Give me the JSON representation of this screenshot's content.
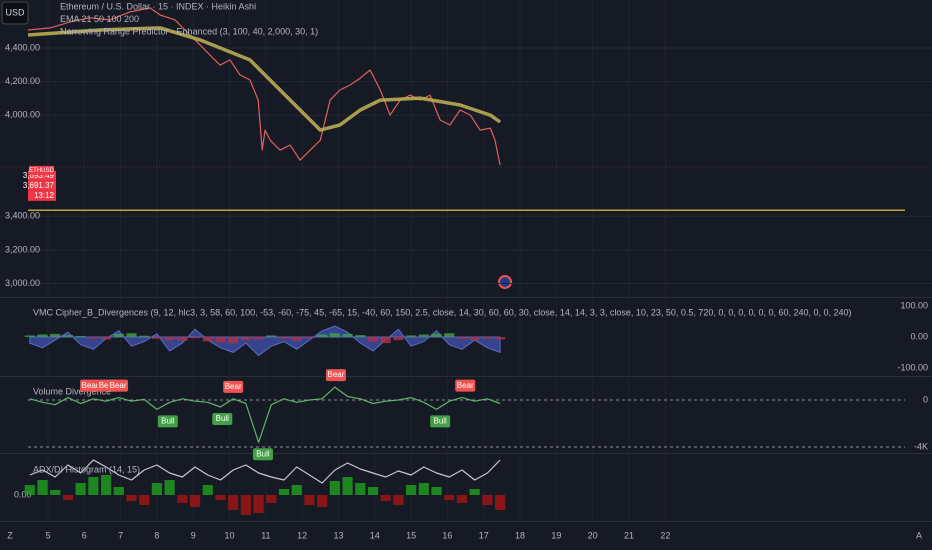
{
  "chart_data": [
    {
      "type": "line",
      "axis_side": "left",
      "grid": "solid",
      "xlim": [
        4.45,
        28.6
      ],
      "xticks": [
        5,
        6,
        7,
        8,
        9,
        10,
        11,
        12,
        13,
        14,
        15,
        16,
        17,
        18,
        19,
        20,
        21,
        22
      ],
      "ylim": [
        2920,
        4685
      ],
      "yticks": [
        {
          "value": 3000,
          "label": "3,000.00"
        },
        {
          "value": 3200,
          "label": "3,200.00"
        },
        {
          "value": 3400,
          "label": "3,400.00"
        },
        {
          "value": 4000,
          "label": "4,000.00"
        },
        {
          "value": 4200,
          "label": "4,200.00"
        },
        {
          "value": 4400,
          "label": "4,400.00"
        }
      ],
      "series": [
        {
          "name": "Ethereum / U.S. Dollar · 15 · INDEX · Heikin Ashi",
          "color": "#e0605e",
          "style": "line",
          "x": [
            4.45,
            5.06,
            5.61,
            6.16,
            6.71,
            7.26,
            7.81,
            8.09,
            8.5,
            8.91,
            9.19,
            9.46,
            9.74,
            10.01,
            10.29,
            10.56,
            10.79,
            10.9,
            10.98,
            11.12,
            11.39,
            11.67,
            11.94,
            12.22,
            12.5,
            12.77,
            13.04,
            13.32,
            13.6,
            13.87,
            14.15,
            14.42,
            14.7,
            14.97,
            15.25,
            15.52,
            15.8,
            16.07,
            16.35,
            16.63,
            16.9,
            17.18,
            17.31,
            17.45
          ],
          "values": [
            4507,
            4519,
            4555,
            4579,
            4567,
            4614,
            4638,
            4596,
            4567,
            4477,
            4418,
            4358,
            4298,
            4329,
            4239,
            4210,
            4090,
            3793,
            3912,
            3852,
            3793,
            3823,
            3733,
            3793,
            3852,
            4090,
            4150,
            4180,
            4221,
            4269,
            4150,
            4001,
            4090,
            4120,
            4090,
            4120,
            3971,
            3942,
            4031,
            4001,
            3912,
            3924,
            3852,
            3704
          ]
        },
        {
          "name": "EMA 21 50 100 200",
          "color": "#b9ac52",
          "style": "thick",
          "x": [
            4.45,
            6.43,
            8.09,
            9.19,
            10.56,
            11.67,
            12.5,
            13.04,
            13.6,
            14.15,
            15.25,
            16.35,
            17.18,
            17.45
          ],
          "values": [
            4477,
            4507,
            4519,
            4448,
            4329,
            4090,
            3912,
            3942,
            4031,
            4090,
            4102,
            4061,
            4001,
            3960
          ]
        },
        {
          "name": "Narrowing Range Predictor - Enhanced (3, 100, 40, 2,000, 30, 1)",
          "color": "#f0d24a",
          "style": "line",
          "x": [
            4.45,
            28.6
          ],
          "values": [
            3436,
            3436
          ]
        }
      ],
      "price_tags": [
        {
          "value": 3693.49,
          "label": "3,693.49"
        },
        {
          "value": 3691.37,
          "label": "3,691.37"
        }
      ],
      "symbol": "ETHUSD",
      "countdown": "13:12"
    },
    {
      "type": "line",
      "axis_side": "right",
      "grid": "none",
      "title": "VMC Cipher_B_Divergences (9, 12, hlc3, 3, 58, 60, 100, -53, -60, -75, 45, -65, 15, -40, 60, 150, 2.5, close, 14, 30, 60, 60, 30, close, 14, 14, 3, 3, close, 10, 23, 50, 0.5, 720, 0, 0, 0, 0, 0, 0, 60, 240, 0, 0, 240)",
      "ylim": [
        -123,
        126
      ],
      "yticks": [
        {
          "value": 100,
          "label": "100.00"
        },
        {
          "value": 0,
          "label": "0.00"
        },
        {
          "value": -100,
          "label": "-100.00"
        }
      ],
      "x": [
        4.5,
        4.85,
        5.2,
        5.55,
        5.9,
        6.25,
        6.6,
        6.95,
        7.3,
        7.65,
        8.0,
        8.35,
        8.7,
        9.05,
        9.4,
        9.75,
        10.1,
        10.45,
        10.8,
        11.15,
        11.5,
        11.85,
        12.2,
        12.55,
        12.9,
        13.25,
        13.6,
        13.95,
        14.3,
        14.65,
        15.0,
        15.35,
        15.7,
        16.05,
        16.4,
        16.75,
        17.1,
        17.45
      ],
      "series": [
        {
          "color": "#3f4fa8",
          "style": "area",
          "values": [
            -20,
            -35,
            -10,
            15,
            -25,
            -40,
            -5,
            20,
            -30,
            -15,
            10,
            -45,
            -20,
            25,
            -10,
            -35,
            -50,
            -20,
            -60,
            -30,
            -15,
            -40,
            -10,
            20,
            35,
            15,
            -20,
            -45,
            -10,
            25,
            -30,
            -15,
            20,
            -25,
            -40,
            -10,
            -35,
            -50
          ]
        },
        {
          "color": "#3f9e4a",
          "negative_color": "#a8324a",
          "style": "bars",
          "values": [
            5,
            8,
            10,
            6,
            3,
            -5,
            -8,
            10,
            12,
            4,
            -6,
            -10,
            -12,
            -4,
            -14,
            -18,
            -20,
            -10,
            -8,
            5,
            -6,
            -12,
            -4,
            8,
            12,
            10,
            6,
            -15,
            -20,
            -10,
            5,
            8,
            10,
            12,
            -6,
            -10,
            -5,
            -8
          ]
        }
      ]
    },
    {
      "type": "line",
      "axis_side": "right",
      "grid": "dashed",
      "title": "Volume Divergence",
      "ylim": [
        -4426,
        1957
      ],
      "yticks": [
        0,
        {
          "value": -4000,
          "label": "-4K"
        }
      ],
      "x": [
        4.5,
        4.85,
        5.2,
        5.55,
        5.9,
        6.25,
        6.6,
        6.95,
        7.3,
        7.65,
        8.0,
        8.35,
        8.7,
        9.05,
        9.4,
        9.75,
        10.1,
        10.45,
        10.8,
        11.15,
        11.5,
        11.85,
        12.2,
        12.55,
        12.9,
        13.25,
        13.6,
        13.95,
        14.3,
        14.65,
        15.0,
        15.35,
        15.7,
        16.05,
        16.4,
        16.75,
        17.1,
        17.45
      ],
      "series": [
        {
          "color": "#5fb56a",
          "style": "line",
          "values": [
            100,
            -200,
            -400,
            200,
            -300,
            100,
            -100,
            200,
            -100,
            50,
            -800,
            -200,
            100,
            -100,
            -200,
            -600,
            100,
            -300,
            -3600,
            -400,
            100,
            -200,
            0,
            100,
            1100,
            300,
            100,
            -300,
            -100,
            0,
            200,
            -200,
            -800,
            -100,
            200,
            -100,
            100,
            -300
          ]
        }
      ],
      "annotations": [
        {
          "text": "Bear",
          "x": 6.16,
          "y": 200,
          "color": "#f05350"
        },
        {
          "text": "Bear",
          "x": 6.63,
          "y": 200,
          "color": "#f05350"
        },
        {
          "text": "Bear",
          "x": 6.93,
          "y": 200,
          "color": "#f05350"
        },
        {
          "text": "Bull",
          "x": 8.3,
          "y": -800,
          "color": "#43a047"
        },
        {
          "text": "Bull",
          "x": 9.8,
          "y": -600,
          "color": "#43a047"
        },
        {
          "text": "Bear",
          "x": 10.1,
          "y": 100,
          "color": "#f05350"
        },
        {
          "text": "Bull",
          "x": 10.92,
          "y": -3600,
          "color": "#43a047"
        },
        {
          "text": "Bear",
          "x": 12.93,
          "y": 1100,
          "color": "#f05350"
        },
        {
          "text": "Bull",
          "x": 15.8,
          "y": -800,
          "color": "#43a047"
        },
        {
          "text": "Bear",
          "x": 16.49,
          "y": 200,
          "color": "#f05350"
        }
      ]
    },
    {
      "type": "bar",
      "axis_side": "left",
      "grid": "none",
      "title": "ADX/DI Histogram (14, 15)",
      "ylim": [
        -25,
        40
      ],
      "yticks": [
        {
          "value": 0,
          "label": "0.00"
        }
      ],
      "x": [
        4.5,
        4.85,
        5.2,
        5.55,
        5.9,
        6.25,
        6.6,
        6.95,
        7.3,
        7.65,
        8.0,
        8.35,
        8.7,
        9.05,
        9.4,
        9.75,
        10.1,
        10.45,
        10.8,
        11.15,
        11.5,
        11.85,
        12.2,
        12.55,
        12.9,
        13.25,
        13.6,
        13.95,
        14.3,
        14.65,
        15.0,
        15.35,
        15.7,
        16.05,
        16.4,
        16.75,
        17.1,
        17.45
      ],
      "series": [
        {
          "color": "#1f9a1f",
          "negative_color": "#9e1515",
          "style": "bars",
          "values": [
            10,
            15,
            5,
            -5,
            12,
            18,
            20,
            8,
            -6,
            -10,
            12,
            15,
            -8,
            -12,
            10,
            -5,
            -15,
            -20,
            -18,
            -8,
            6,
            10,
            -10,
            -12,
            14,
            18,
            12,
            8,
            -6,
            -10,
            10,
            12,
            8,
            -5,
            -8,
            6,
            -10,
            -15
          ]
        },
        {
          "color": "#c8c8c8",
          "style": "line",
          "values": [
            20,
            25,
            18,
            30,
            22,
            35,
            28,
            20,
            15,
            25,
            30,
            22,
            18,
            28,
            20,
            15,
            25,
            30,
            22,
            18,
            15,
            28,
            20,
            12,
            25,
            32,
            26,
            22,
            18,
            24,
            20,
            28,
            22,
            18,
            25,
            15,
            22,
            35
          ]
        }
      ]
    }
  ],
  "ui": {
    "currency": "USD",
    "corner_left": "Z",
    "corner_right": "A"
  }
}
